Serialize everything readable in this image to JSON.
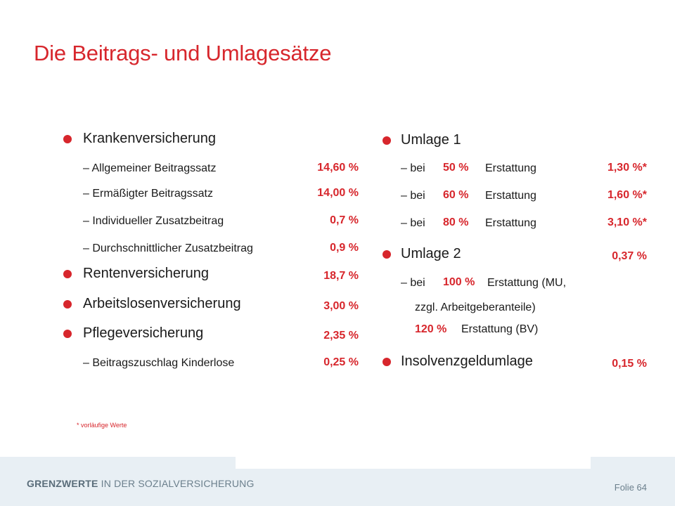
{
  "slide": {
    "title": "Die Beitrags- und Umlagesätze"
  },
  "left": {
    "kranken": {
      "label": "Krankenversicherung",
      "items": [
        {
          "label": "Allgemeiner Beitragssatz",
          "value": "14,60 %"
        },
        {
          "label": "Ermäßigter Beitragssatz",
          "value": "14,00 %"
        },
        {
          "label": "Individueller Zusatzbeitrag",
          "value": "0,7 %"
        },
        {
          "label": "Durchschnittlicher Zusatzbeitrag",
          "value": "0,9 %"
        }
      ]
    },
    "renten": {
      "label": "Rentenversicherung",
      "value": "18,7 %"
    },
    "arbeitslosen": {
      "label": "Arbeitslosenversicherung",
      "value": "3,00 %"
    },
    "pflege": {
      "label": "Pflegeversicherung",
      "value": "2,35 %",
      "items": [
        {
          "label": "Beitragszuschlag Kinderlose",
          "value": "0,25 %"
        }
      ]
    }
  },
  "right": {
    "umlage1": {
      "label": "Umlage 1",
      "items": [
        {
          "prefix": "bei",
          "pct": "50 %",
          "suffix": "Erstattung",
          "value": "1,30 %*"
        },
        {
          "prefix": "bei",
          "pct": "60 %",
          "suffix": "Erstattung",
          "value": "1,60 %*"
        },
        {
          "prefix": "bei",
          "pct": "80 %",
          "suffix": "Erstattung",
          "value": "3,10 %*"
        }
      ]
    },
    "umlage2": {
      "label": "Umlage 2",
      "value": "0,37 %",
      "line1_prefix": "bei",
      "line1_pct": "100 %",
      "line1_suffix": "Erstattung (MU,",
      "line2": "zzgl. Arbeitgeberanteile)",
      "line3_pct": "120 %",
      "line3_suffix": "Erstattung (BV)"
    },
    "insolvenz": {
      "label": "Insolvenzgeldumlage",
      "value": "0,15 %"
    }
  },
  "footnote": "* vorläufige Werte",
  "footer": {
    "brand_bold": "GRENZWERTE",
    "brand_rest": " IN DER SOZIALVERSICHERUNG",
    "slide_number": "Folie 64"
  },
  "colors": {
    "accent": "#d7262c",
    "footer_band": "#e8eff4"
  }
}
